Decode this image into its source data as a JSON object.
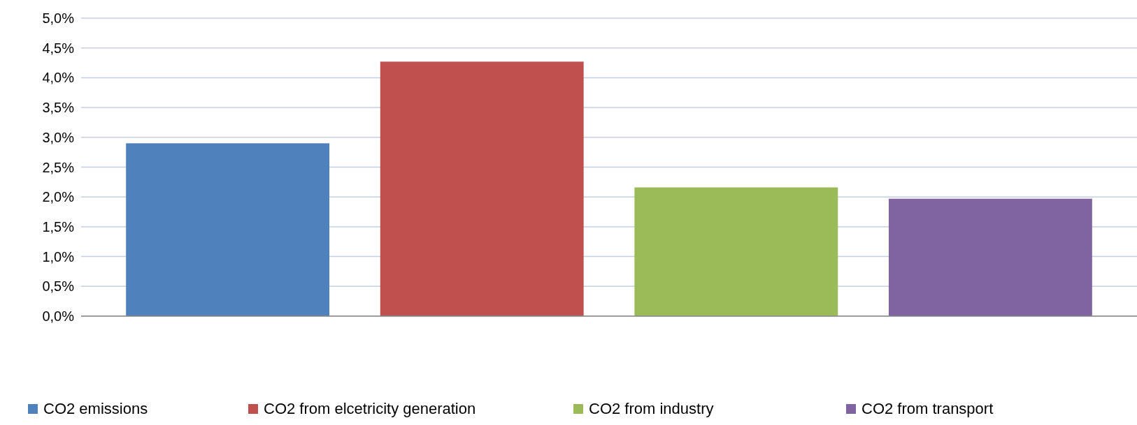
{
  "chart_data": {
    "type": "bar",
    "categories": [
      null
    ],
    "series": [
      {
        "name": "CO2 emissions",
        "color": "#4f81bd",
        "values": [
          2.9
        ]
      },
      {
        "name": "CO2 from elcetricity generation",
        "color": "#c0504d",
        "values": [
          4.27
        ]
      },
      {
        "name": "CO2 from industry",
        "color": "#9bbb59",
        "values": [
          2.16
        ]
      },
      {
        "name": "CO2 from transport",
        "color": "#8064a2",
        "values": [
          1.97
        ]
      }
    ],
    "ylim": [
      0,
      5
    ],
    "yticks": [
      {
        "value": 0,
        "label": "0,0%"
      },
      {
        "value": 0.5,
        "label": "0,5%"
      },
      {
        "value": 1,
        "label": "1,0%"
      },
      {
        "value": 1.5,
        "label": "1,5%"
      },
      {
        "value": 2,
        "label": "2,0%"
      },
      {
        "value": 2.5,
        "label": "2,5%"
      },
      {
        "value": 3,
        "label": "3,0%"
      },
      {
        "value": 3.5,
        "label": "3,5%"
      },
      {
        "value": 4,
        "label": "4,0%"
      },
      {
        "value": 4.5,
        "label": "4,5%"
      },
      {
        "value": 5,
        "label": "5,0%"
      }
    ],
    "grid": "y",
    "legend": "bottom"
  }
}
